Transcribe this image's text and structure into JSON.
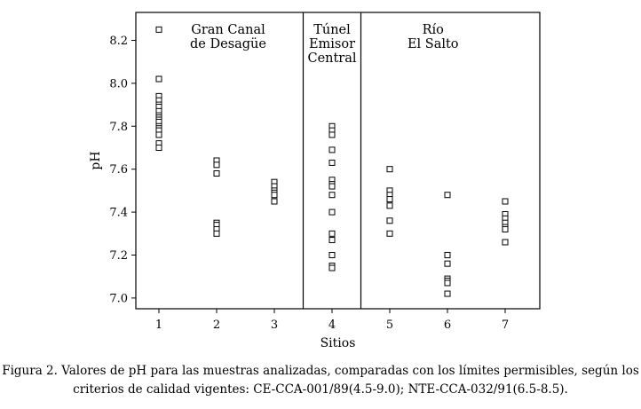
{
  "chart_data": {
    "type": "scatter",
    "xlabel": "Sitios",
    "ylabel": "pH",
    "xlim": [
      0.6,
      7.6
    ],
    "ylim": [
      6.95,
      8.33
    ],
    "x_ticks": [
      1,
      2,
      3,
      4,
      5,
      6,
      7
    ],
    "y_ticks": [
      7.0,
      7.2,
      7.4,
      7.6,
      7.8,
      8.0,
      8.2
    ],
    "y_tick_labels": [
      "7.0",
      "7.2",
      "7.4",
      "7.6",
      "7.8",
      "8.0",
      "8.2"
    ],
    "region_dividers": [
      3.5,
      4.5
    ],
    "regions": [
      {
        "lines": [
          "Gran Canal",
          "de Desagüe"
        ],
        "center_x": 2.2
      },
      {
        "lines": [
          "Túnel",
          "Emisor",
          "Central"
        ],
        "center_x": 4.0
      },
      {
        "lines": [
          "Río",
          "El Salto"
        ],
        "center_x": 5.75
      }
    ],
    "marker": "open-square",
    "series": [
      {
        "site": 1,
        "values": [
          8.25,
          8.02,
          7.94,
          7.92,
          7.9,
          7.89,
          7.87,
          7.85,
          7.84,
          7.83,
          7.82,
          7.8,
          7.79,
          7.78,
          7.76,
          7.72,
          7.7
        ]
      },
      {
        "site": 2,
        "values": [
          7.64,
          7.62,
          7.58,
          7.35,
          7.34,
          7.32,
          7.3
        ]
      },
      {
        "site": 3,
        "values": [
          7.54,
          7.52,
          7.5,
          7.49,
          7.48,
          7.45
        ]
      },
      {
        "site": 4,
        "values": [
          7.8,
          7.78,
          7.76,
          7.69,
          7.63,
          7.55,
          7.53,
          7.52,
          7.48,
          7.4,
          7.3,
          7.27,
          7.2,
          7.15,
          7.14
        ]
      },
      {
        "site": 5,
        "values": [
          7.6,
          7.5,
          7.48,
          7.46,
          7.43,
          7.36,
          7.3
        ]
      },
      {
        "site": 6,
        "values": [
          7.48,
          7.2,
          7.16,
          7.09,
          7.08,
          7.07,
          7.02
        ]
      },
      {
        "site": 7,
        "values": [
          7.45,
          7.39,
          7.37,
          7.35,
          7.33,
          7.32,
          7.26
        ]
      }
    ]
  },
  "caption": {
    "line1": "Figura 2. Valores de pH para las muestras analizadas, comparadas con los límites permisibles, según los",
    "line2": "criterios de calidad vigentes: CE-CCA-001/89(4.5-9.0); NTE-CCA-032/91(6.5-8.5)."
  }
}
